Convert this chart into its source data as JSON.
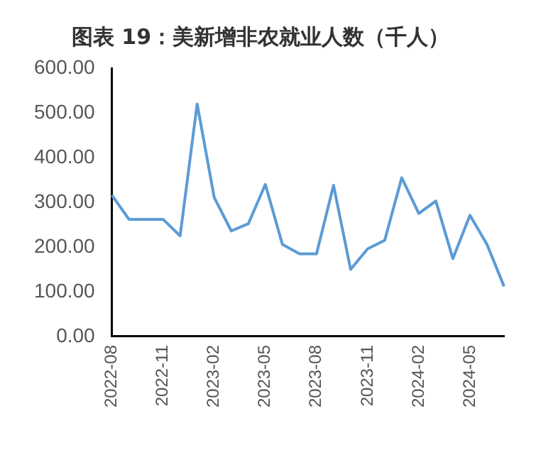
{
  "chart_data": {
    "type": "line",
    "title": "图表 19：美新增非农就业人数（千人）",
    "categories": [
      "2022-08",
      null,
      null,
      "2022-11",
      null,
      null,
      "2023-02",
      null,
      null,
      "2023-05",
      null,
      null,
      "2023-08",
      null,
      null,
      "2023-11",
      null,
      null,
      "2024-02",
      null,
      null,
      "2024-05",
      null,
      null
    ],
    "series": [
      {
        "color": "#5b9bd5",
        "values": [
          316,
          262,
          262,
          262,
          225,
          520,
          311,
          236,
          252,
          340,
          206,
          185,
          185,
          338,
          150,
          196,
          215,
          355,
          275,
          303,
          174,
          271,
          206,
          112
        ]
      }
    ],
    "ylim": [
      0,
      600
    ],
    "yticks": [
      {
        "value": 0,
        "label": "0.00"
      },
      {
        "value": 100,
        "label": "100.00"
      },
      {
        "value": 200,
        "label": "200.00"
      },
      {
        "value": 300,
        "label": "300.00"
      },
      {
        "value": 400,
        "label": "400.00"
      },
      {
        "value": 500,
        "label": "500.00"
      },
      {
        "value": 600,
        "label": "600.00"
      }
    ],
    "grid": false,
    "legend": false,
    "marker": "none",
    "line_style": "solid"
  }
}
